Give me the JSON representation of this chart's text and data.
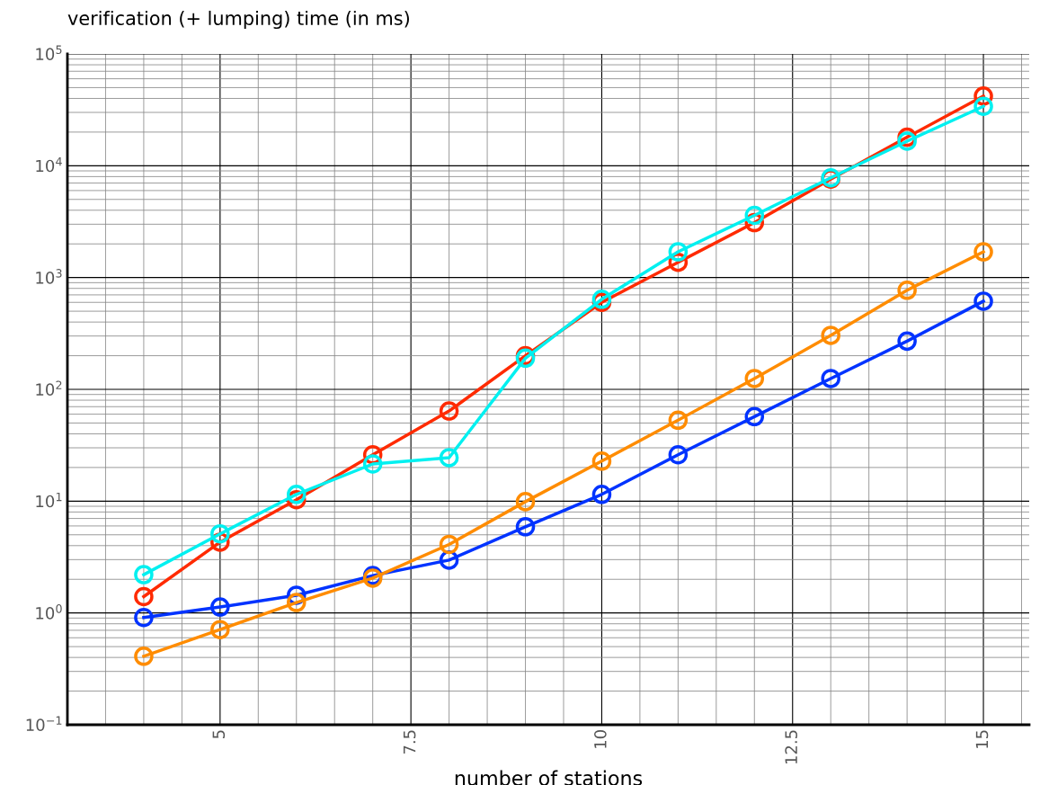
{
  "chart_data": {
    "type": "line",
    "ylabel": "verification (+ lumping) time (in ms)",
    "xlabel": "number of stations",
    "x": [
      4,
      5,
      6,
      7,
      8,
      9,
      10,
      11,
      12,
      13,
      14,
      15
    ],
    "series": [
      {
        "color": "#ff2a00",
        "values": [
          1.4,
          4.3,
          10.3,
          26,
          64,
          200,
          600,
          1370,
          3100,
          7600,
          18000,
          42000
        ]
      },
      {
        "color": "#00f0f0",
        "values": [
          2.2,
          5.1,
          11.5,
          21.5,
          24.5,
          190,
          640,
          1700,
          3600,
          7800,
          16600,
          34000
        ]
      },
      {
        "color": "#0033ff",
        "values": [
          0.91,
          1.13,
          1.44,
          2.16,
          2.97,
          5.9,
          11.5,
          26,
          57,
          125,
          270,
          615
        ]
      },
      {
        "color": "#ff8c00",
        "values": [
          0.41,
          0.71,
          1.24,
          2.05,
          4.1,
          9.9,
          22.8,
          53,
          125,
          304,
          770,
          1700
        ]
      }
    ],
    "log": "y",
    "xlim": [
      3,
      15.6
    ],
    "ylim": [
      0.1,
      100000
    ],
    "xticks": [
      5,
      7.5,
      10,
      12.5,
      15
    ],
    "yticks": [
      {
        "value": 0.1,
        "label": "10$^{−1}$"
      },
      {
        "value": 1,
        "label": "10$^{0}$"
      },
      {
        "value": 10,
        "label": "10$^{1}$"
      },
      {
        "value": 100,
        "label": "10$^{2}$"
      },
      {
        "value": 1000,
        "label": "10$^{3}$"
      },
      {
        "value": 10000,
        "label": "10$^{4}$"
      },
      {
        "value": 100000,
        "label": "10$^{5}$"
      }
    ],
    "grid": true,
    "marker": "circle",
    "line_style": "solid"
  }
}
